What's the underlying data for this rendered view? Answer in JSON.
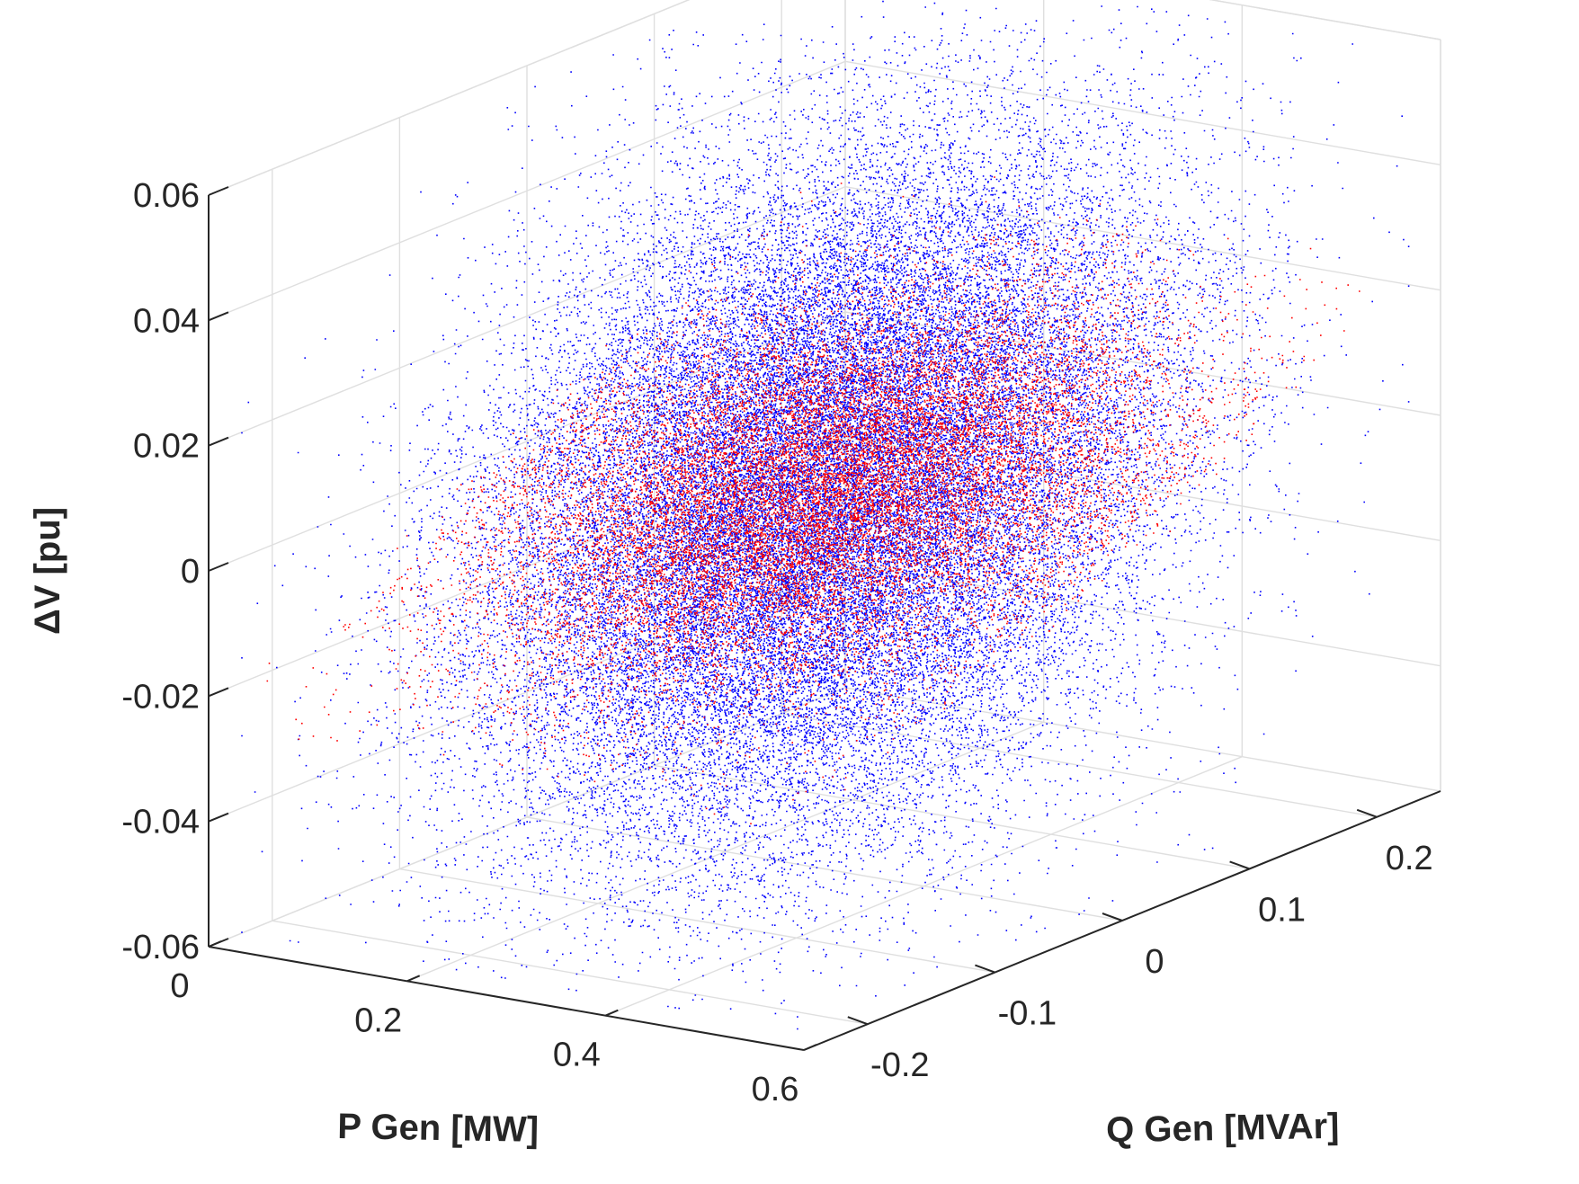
{
  "chart_data": {
    "type": "scatter",
    "title": "",
    "xlabel": "P Gen [MW]",
    "ylabel": "Q Gen [MVAr]",
    "zlabel": "ΔV [pu]",
    "xlim": [
      0,
      0.6
    ],
    "ylim": [
      -0.25,
      0.25
    ],
    "zlim": [
      -0.06,
      0.06
    ],
    "grid": true,
    "x_ticks": [
      "0",
      "0.2",
      "0.4",
      "0.6"
    ],
    "y_ticks": [
      "-0.2",
      "-0.1",
      "0",
      "0.1",
      "0.2"
    ],
    "z_ticks": [
      "-0.06",
      "-0.04",
      "-0.02",
      "0",
      "0.02",
      "0.04",
      "0.06"
    ],
    "x_tick_values": [
      0,
      0.2,
      0.4,
      0.6
    ],
    "y_tick_values": [
      -0.2,
      -0.1,
      0,
      0.1,
      0.2
    ],
    "z_tick_values": [
      -0.06,
      -0.04,
      -0.02,
      0,
      0.02,
      0.04,
      0.06
    ],
    "series": [
      {
        "color": "#0000ff",
        "marker": "dot",
        "distribution": "dense cloud",
        "center": {
          "p": 0.3,
          "q": 0.0,
          "dv": 0.0
        },
        "spread": {
          "p": 0.13,
          "q": 0.09,
          "dv": 0.022
        },
        "dv_vs_q_slope": 0.1,
        "p_range": [
          0.02,
          0.58
        ],
        "q_range": [
          -0.24,
          0.24
        ],
        "dv_range": [
          -0.058,
          0.058
        ],
        "approx_points": 95000
      },
      {
        "color": "#ff0000",
        "marker": "dot",
        "distribution": "planar band",
        "center": {
          "p": 0.3,
          "q": 0.0,
          "dv": 0.0
        },
        "spread": {
          "p": 0.13,
          "q": 0.08,
          "dv": 0.003
        },
        "dv_vs_q_slope": 0.105,
        "p_range": [
          0.02,
          0.58
        ],
        "q_range": [
          -0.22,
          0.22
        ],
        "dv_range": [
          -0.03,
          0.03
        ],
        "approx_points": 26000
      }
    ]
  }
}
